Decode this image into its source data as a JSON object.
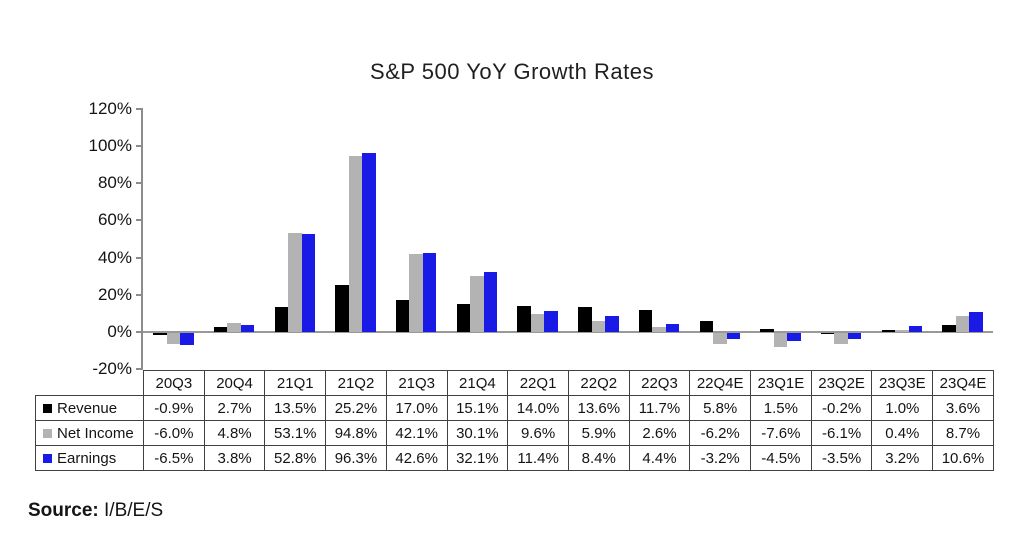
{
  "title": "S&P 500 YoY Growth Rates",
  "source": {
    "label": "Source:",
    "value": "I/B/E/S"
  },
  "colors": {
    "revenue": "#000000",
    "net_income": "#b3b3b3",
    "earnings": "#1a1ae6",
    "axis": "#8c8c8c",
    "table_border": "#404040"
  },
  "chart_data": {
    "type": "bar",
    "title": "S&P 500 YoY Growth Rates",
    "categories": [
      "20Q3",
      "20Q4",
      "21Q1",
      "21Q2",
      "21Q3",
      "21Q4",
      "22Q1",
      "22Q2",
      "22Q3",
      "22Q4E",
      "23Q1E",
      "23Q2E",
      "23Q3E",
      "23Q4E"
    ],
    "series": [
      {
        "name": "Revenue",
        "color": "#000000",
        "values": [
          -0.9,
          2.7,
          13.5,
          25.2,
          17.0,
          15.1,
          14.0,
          13.6,
          11.7,
          5.8,
          1.5,
          -0.2,
          1.0,
          3.6
        ]
      },
      {
        "name": "Net Income",
        "color": "#b3b3b3",
        "values": [
          -6.0,
          4.8,
          53.1,
          94.8,
          42.1,
          30.1,
          9.6,
          5.9,
          2.6,
          -6.2,
          -7.6,
          -6.1,
          0.4,
          8.7
        ]
      },
      {
        "name": "Earnings",
        "color": "#1a1ae6",
        "values": [
          -6.5,
          3.8,
          52.8,
          96.3,
          42.6,
          32.1,
          11.4,
          8.4,
          4.4,
          -3.2,
          -4.5,
          -3.5,
          3.2,
          10.6
        ]
      }
    ],
    "xlabel": "",
    "ylabel": "",
    "ylim": [
      -20,
      120
    ],
    "yticks": [
      120,
      100,
      80,
      60,
      40,
      20,
      0,
      -20
    ],
    "ytick_labels": [
      "120%",
      "100%",
      "80%",
      "60%",
      "40%",
      "20%",
      "0%",
      "-20%"
    ],
    "value_suffix": "%",
    "grid": false,
    "legend_position": "table-left"
  },
  "table": {
    "corner": "",
    "columns": [
      "20Q3",
      "20Q4",
      "21Q1",
      "21Q2",
      "21Q3",
      "21Q4",
      "22Q1",
      "22Q2",
      "22Q3",
      "22Q4E",
      "23Q1E",
      "23Q2E",
      "23Q3E",
      "23Q4E"
    ],
    "rows": [
      {
        "label": "Revenue",
        "swatch_color": "#000000",
        "values": [
          "-0.9%",
          "2.7%",
          "13.5%",
          "25.2%",
          "17.0%",
          "15.1%",
          "14.0%",
          "13.6%",
          "11.7%",
          "5.8%",
          "1.5%",
          "-0.2%",
          "1.0%",
          "3.6%"
        ]
      },
      {
        "label": "Net Income",
        "swatch_color": "#b3b3b3",
        "values": [
          "-6.0%",
          "4.8%",
          "53.1%",
          "94.8%",
          "42.1%",
          "30.1%",
          "9.6%",
          "5.9%",
          "2.6%",
          "-6.2%",
          "-7.6%",
          "-6.1%",
          "0.4%",
          "8.7%"
        ]
      },
      {
        "label": "Earnings",
        "swatch_color": "#1a1ae6",
        "values": [
          "-6.5%",
          "3.8%",
          "52.8%",
          "96.3%",
          "42.6%",
          "32.1%",
          "11.4%",
          "8.4%",
          "4.4%",
          "-3.2%",
          "-4.5%",
          "-3.5%",
          "3.2%",
          "10.6%"
        ]
      }
    ]
  }
}
